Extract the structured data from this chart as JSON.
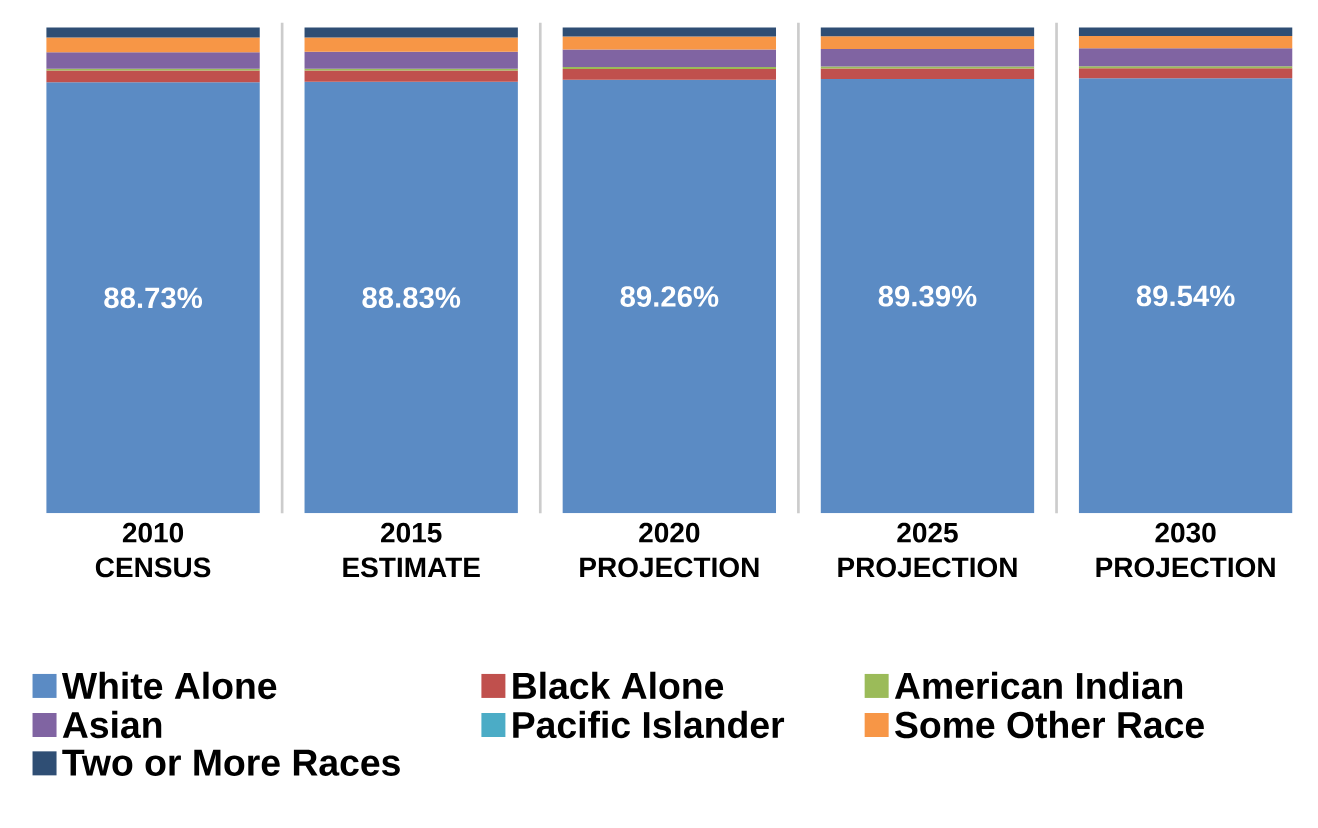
{
  "chart_data": {
    "type": "bar",
    "stacked": true,
    "categories": [
      "2010 CENSUS",
      "2015 ESTIMATE",
      "2020 PROJECTION",
      "2025 PROJECTION",
      "2030 PROJECTION"
    ],
    "series": [
      {
        "name": "White Alone",
        "color": "#5b8bc4",
        "values": [
          88.73,
          88.83,
          89.26,
          89.39,
          89.54
        ],
        "value_labels": [
          "88.73%",
          "88.83%",
          "89.26%",
          "89.39%",
          "89.54%"
        ]
      },
      {
        "name": "Black Alone",
        "color": "#c0504d",
        "values": [
          2.4,
          2.3,
          2.2,
          2.2,
          2.1
        ]
      },
      {
        "name": "American Indian",
        "color": "#9bbb59",
        "values": [
          0.4,
          0.4,
          0.4,
          0.4,
          0.4
        ]
      },
      {
        "name": "Asian",
        "color": "#8064a2",
        "values": [
          3.4,
          3.5,
          3.6,
          3.6,
          3.7
        ]
      },
      {
        "name": "Pacific Islander",
        "color": "#4bacc6",
        "values": [
          null,
          null,
          null,
          null,
          null
        ]
      },
      {
        "name": "Some Other Race",
        "color": "#f79646",
        "values": [
          3.0,
          2.9,
          2.7,
          2.6,
          2.5
        ]
      },
      {
        "name": "Two or More Races",
        "color": "#2f4e74",
        "values": [
          2.07,
          2.07,
          1.84,
          1.81,
          1.76
        ]
      }
    ],
    "grid": "x",
    "legend": "bottom"
  }
}
